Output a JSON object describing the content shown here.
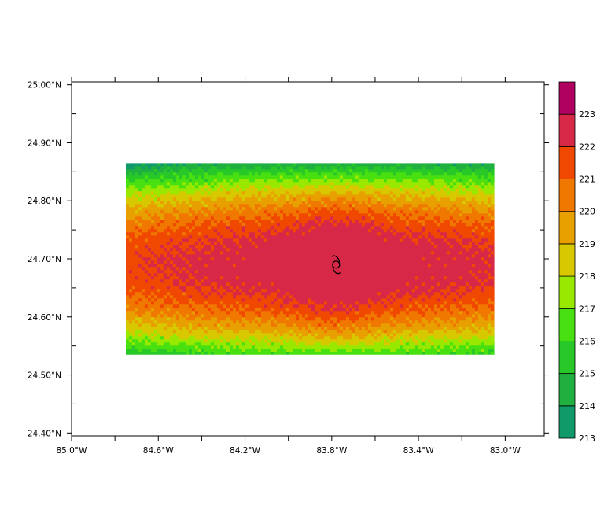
{
  "chart_data": {
    "type": "heatmap",
    "title": "",
    "xlabel": "",
    "ylabel": "",
    "x_ticks": [
      "85.0°W",
      "84.6°W",
      "84.2°W",
      "83.8°W",
      "83.4°W",
      "83.0°W"
    ],
    "y_ticks": [
      "24.40°N",
      "24.50°N",
      "24.60°N",
      "24.70°N",
      "24.80°N",
      "24.90°N",
      "25.00°N"
    ],
    "xlim": [
      -85.0,
      -82.82
    ],
    "ylim": [
      24.395,
      25.005
    ],
    "data_extent": {
      "lon": [
        -84.75,
        -83.05
      ],
      "lat": [
        24.535,
        24.865
      ]
    },
    "center": {
      "lon": -83.78,
      "lat": 24.69
    },
    "storm_symbol": "tropical-storm-symbol",
    "colorbar": {
      "levels": [
        "213",
        "214",
        "215",
        "216",
        "217",
        "218",
        "219",
        "220",
        "221",
        "222",
        "223"
      ],
      "colors": [
        "#109a6a",
        "#20b040",
        "#28c828",
        "#48e010",
        "#98e800",
        "#d8c800",
        "#e8a000",
        "#f07800",
        "#f04800",
        "#d82848",
        "#b00060"
      ]
    }
  }
}
